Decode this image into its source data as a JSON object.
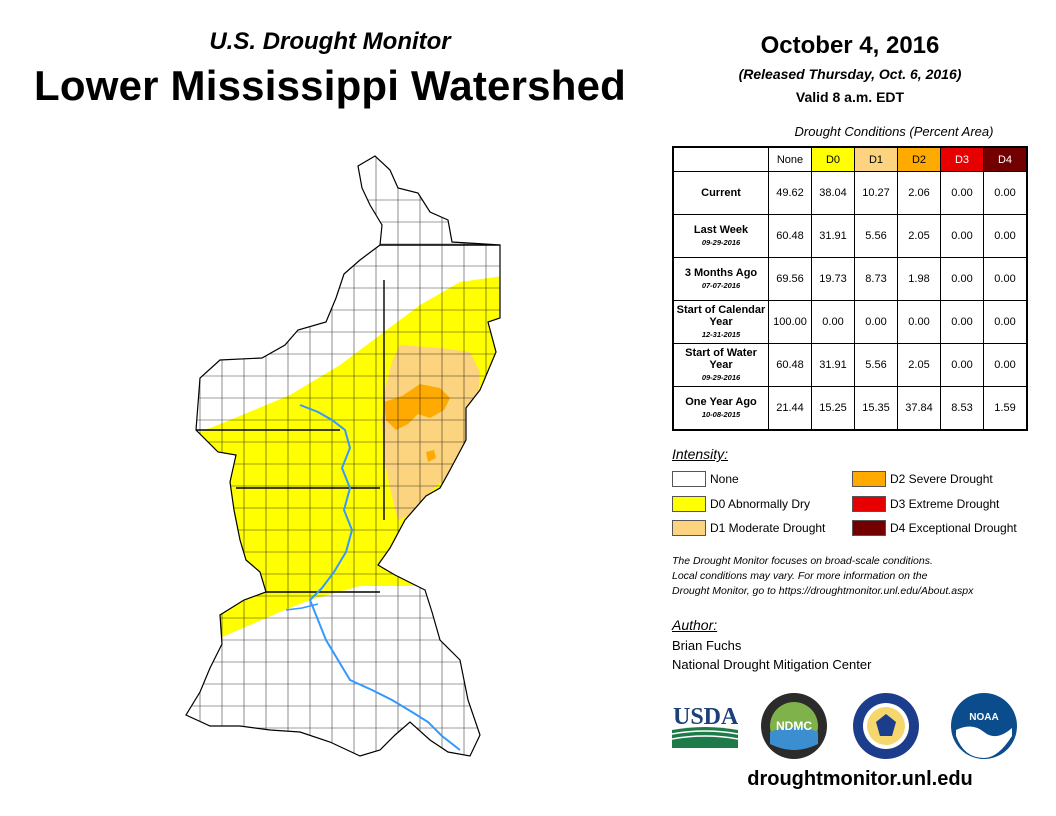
{
  "header": {
    "subtitle": "U.S. Drought Monitor",
    "title": "Lower Mississippi Watershed",
    "date": "October 4, 2016",
    "released": "(Released Thursday, Oct. 6, 2016)",
    "valid": "Valid 8 a.m. EDT"
  },
  "table": {
    "title": "Drought Conditions (Percent Area)",
    "columns": [
      "None",
      "D0",
      "D1",
      "D2",
      "D3",
      "D4"
    ],
    "rows": [
      {
        "label": "Current",
        "date": "",
        "values": [
          "49.62",
          "38.04",
          "10.27",
          "2.06",
          "0.00",
          "0.00"
        ]
      },
      {
        "label": "Last Week",
        "date": "09-29-2016",
        "values": [
          "60.48",
          "31.91",
          "5.56",
          "2.05",
          "0.00",
          "0.00"
        ]
      },
      {
        "label": "3 Months Ago",
        "date": "07-07-2016",
        "values": [
          "69.56",
          "19.73",
          "8.73",
          "1.98",
          "0.00",
          "0.00"
        ]
      },
      {
        "label": "Start of Calendar Year",
        "date": "12-31-2015",
        "values": [
          "100.00",
          "0.00",
          "0.00",
          "0.00",
          "0.00",
          "0.00"
        ]
      },
      {
        "label": "Start of Water Year",
        "date": "09-29-2016",
        "values": [
          "60.48",
          "31.91",
          "5.56",
          "2.05",
          "0.00",
          "0.00"
        ]
      },
      {
        "label": "One Year Ago",
        "date": "10-08-2015",
        "values": [
          "21.44",
          "15.25",
          "15.35",
          "37.84",
          "8.53",
          "1.59"
        ]
      }
    ]
  },
  "legend": {
    "label": "Intensity:",
    "items": [
      {
        "label": "None",
        "color": "#ffffff"
      },
      {
        "label": "D0 Abnormally Dry",
        "color": "#ffff00"
      },
      {
        "label": "D1 Moderate Drought",
        "color": "#fcd37f"
      },
      {
        "label": "D2 Severe Drought",
        "color": "#ffaa00"
      },
      {
        "label": "D3 Extreme Drought",
        "color": "#e60000"
      },
      {
        "label": "D4 Exceptional Drought",
        "color": "#730000"
      }
    ]
  },
  "colors": {
    "none": "#ffffff",
    "d0": "#ffff00",
    "d1": "#fcd37f",
    "d2": "#ffaa00",
    "d3": "#e60000",
    "d4": "#730000",
    "river": "#3399ff"
  },
  "note": {
    "line1": "The Drought Monitor focuses on broad-scale conditions.",
    "line2": "Local conditions may vary. For more information on the",
    "line3": "Drought Monitor, go to https://droughtmonitor.unl.edu/About.aspx"
  },
  "author": {
    "label": "Author:",
    "name": "Brian Fuchs",
    "org": "National Drought Mitigation Center"
  },
  "logos": {
    "usda": "USDA",
    "ndmc": "NDMC",
    "noaa": "NOAA"
  },
  "website": "droughtmonitor.unl.edu"
}
